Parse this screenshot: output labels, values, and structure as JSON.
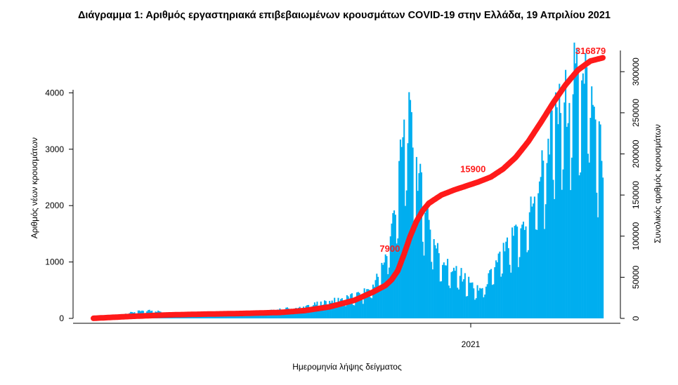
{
  "chart_data": {
    "type": "bar",
    "title": "Διάγραμμα 1: Αριθμός εργαστηριακά επιβεβαιωμένων κρουσμάτων COVID-19 στην Ελλάδα, 19 Απριλίου 2021",
    "xlabel": "Ημερομηνία λήψης δείγματος",
    "ylabel": "Αριθμός νέων κρουσμάτων",
    "y2label": "Συνολικός αριθμός κρουσμάτων",
    "x_tick_labels": [
      "2021"
    ],
    "y_ticks": [
      0,
      1000,
      2000,
      3000,
      4000
    ],
    "y2_ticks": [
      0,
      50000,
      100000,
      150000,
      200000,
      250000,
      300000
    ],
    "ylim": [
      0,
      4900
    ],
    "y2lim": [
      0,
      336000
    ],
    "bar_color": "#00aeef",
    "cumulative_color": "#ff1a1a",
    "cumulative_annotations": [
      {
        "label": "7900",
        "day": 249,
        "value": 7900
      },
      {
        "label": "15900",
        "day": 318,
        "value": 15900
      },
      {
        "label": "316879",
        "day": 409,
        "value": 316879
      }
    ],
    "daily_anchors": [
      [
        0,
        20
      ],
      [
        20,
        60
      ],
      [
        35,
        120
      ],
      [
        45,
        140
      ],
      [
        55,
        120
      ],
      [
        65,
        60
      ],
      [
        80,
        50
      ],
      [
        95,
        60
      ],
      [
        110,
        80
      ],
      [
        125,
        100
      ],
      [
        140,
        130
      ],
      [
        155,
        170
      ],
      [
        170,
        200
      ],
      [
        180,
        260
      ],
      [
        190,
        300
      ],
      [
        200,
        350
      ],
      [
        210,
        400
      ],
      [
        220,
        500
      ],
      [
        225,
        600
      ],
      [
        230,
        800
      ],
      [
        235,
        1100
      ],
      [
        240,
        1600
      ],
      [
        245,
        2400
      ],
      [
        248,
        3000
      ],
      [
        251,
        3400
      ],
      [
        253,
        3600
      ],
      [
        256,
        3300
      ],
      [
        259,
        2900
      ],
      [
        262,
        2500
      ],
      [
        266,
        2100
      ],
      [
        270,
        1800
      ],
      [
        275,
        1300
      ],
      [
        280,
        1100
      ],
      [
        285,
        950
      ],
      [
        290,
        850
      ],
      [
        295,
        800
      ],
      [
        300,
        700
      ],
      [
        305,
        600
      ],
      [
        310,
        500
      ],
      [
        315,
        600
      ],
      [
        320,
        800
      ],
      [
        325,
        1050
      ],
      [
        330,
        1200
      ],
      [
        335,
        1350
      ],
      [
        340,
        1500
      ],
      [
        345,
        1650
      ],
      [
        350,
        1850
      ],
      [
        355,
        2200
      ],
      [
        360,
        2600
      ],
      [
        365,
        3100
      ],
      [
        370,
        3500
      ],
      [
        375,
        3700
      ],
      [
        380,
        3900
      ],
      [
        385,
        4200
      ],
      [
        390,
        4400
      ],
      [
        394,
        4700
      ],
      [
        398,
        4300
      ],
      [
        402,
        3700
      ],
      [
        405,
        3500
      ],
      [
        408,
        3100
      ],
      [
        410,
        2600
      ]
    ],
    "cumulative_anchors": [
      [
        0,
        100
      ],
      [
        30,
        2400
      ],
      [
        60,
        4200
      ],
      [
        90,
        5200
      ],
      [
        120,
        6000
      ],
      [
        150,
        7200
      ],
      [
        170,
        9500
      ],
      [
        190,
        14000
      ],
      [
        210,
        22000
      ],
      [
        225,
        32000
      ],
      [
        235,
        40000
      ],
      [
        240,
        47000
      ],
      [
        245,
        58000
      ],
      [
        250,
        78000
      ],
      [
        255,
        100000
      ],
      [
        260,
        118000
      ],
      [
        265,
        131000
      ],
      [
        270,
        140000
      ],
      [
        280,
        150000
      ],
      [
        290,
        156000
      ],
      [
        300,
        161000
      ],
      [
        310,
        166000
      ],
      [
        320,
        172000
      ],
      [
        330,
        182000
      ],
      [
        340,
        196000
      ],
      [
        350,
        215000
      ],
      [
        360,
        238000
      ],
      [
        370,
        262000
      ],
      [
        380,
        284000
      ],
      [
        390,
        302000
      ],
      [
        400,
        313000
      ],
      [
        410,
        316879
      ]
    ]
  }
}
